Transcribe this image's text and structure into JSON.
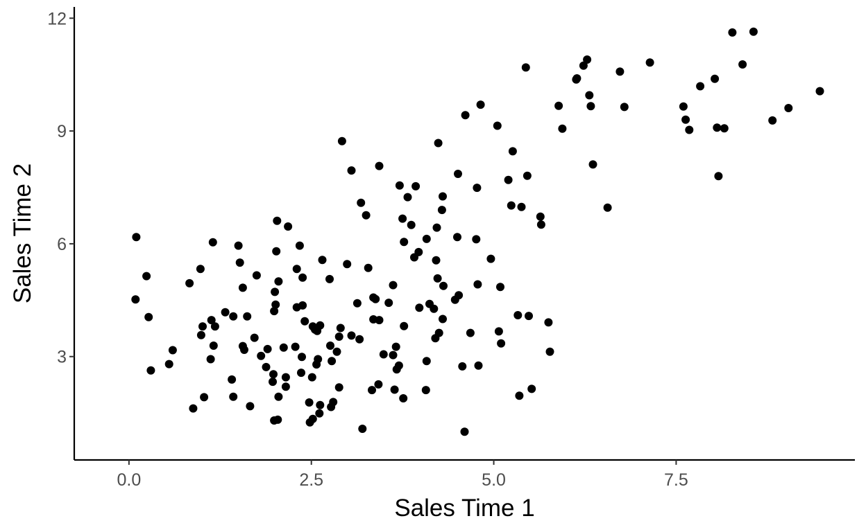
{
  "chart_data": {
    "type": "scatter",
    "xlabel": "Sales Time 1",
    "ylabel": "Sales Time 2",
    "xlim": [
      -0.75,
      9.95
    ],
    "ylim": [
      0.25,
      12.3
    ],
    "xticks": [
      0.0,
      2.5,
      5.0,
      7.5
    ],
    "xtick_labels": [
      "0.0",
      "2.5",
      "5.0",
      "7.5"
    ],
    "yticks": [
      3,
      6,
      9,
      12
    ],
    "ytick_labels": [
      "3",
      "6",
      "9",
      "12"
    ],
    "grid": false,
    "legend": "none",
    "point_color": "#000000",
    "points": [
      [
        0.1,
        6.18
      ],
      [
        0.09,
        4.52
      ],
      [
        0.24,
        5.14
      ],
      [
        0.27,
        4.05
      ],
      [
        0.3,
        2.63
      ],
      [
        0.55,
        2.8
      ],
      [
        0.6,
        3.17
      ],
      [
        0.83,
        4.95
      ],
      [
        0.88,
        1.62
      ],
      [
        0.98,
        5.33
      ],
      [
        0.99,
        3.57
      ],
      [
        1.01,
        3.8
      ],
      [
        1.03,
        1.92
      ],
      [
        1.12,
        2.93
      ],
      [
        1.13,
        3.97
      ],
      [
        1.15,
        6.04
      ],
      [
        1.16,
        3.29
      ],
      [
        1.18,
        3.8
      ],
      [
        1.32,
        4.18
      ],
      [
        1.41,
        2.39
      ],
      [
        1.43,
        1.93
      ],
      [
        1.43,
        4.07
      ],
      [
        1.5,
        5.95
      ],
      [
        1.52,
        5.5
      ],
      [
        1.56,
        4.83
      ],
      [
        1.56,
        3.28
      ],
      [
        1.58,
        3.18
      ],
      [
        1.62,
        4.07
      ],
      [
        1.66,
        1.68
      ],
      [
        1.72,
        3.5
      ],
      [
        1.75,
        5.16
      ],
      [
        1.81,
        3.02
      ],
      [
        1.88,
        2.72
      ],
      [
        1.9,
        3.2
      ],
      [
        1.97,
        2.33
      ],
      [
        1.98,
        2.53
      ],
      [
        1.99,
        1.3
      ],
      [
        1.99,
        4.21
      ],
      [
        2.0,
        4.72
      ],
      [
        2.01,
        4.38
      ],
      [
        2.02,
        5.8
      ],
      [
        2.03,
        6.61
      ],
      [
        2.04,
        1.32
      ],
      [
        2.05,
        5.0
      ],
      [
        2.05,
        1.93
      ],
      [
        2.12,
        3.24
      ],
      [
        2.15,
        2.45
      ],
      [
        2.15,
        2.2
      ],
      [
        2.18,
        6.46
      ],
      [
        2.28,
        3.26
      ],
      [
        2.3,
        4.31
      ],
      [
        2.3,
        5.33
      ],
      [
        2.34,
        5.95
      ],
      [
        2.36,
        2.57
      ],
      [
        2.37,
        2.99
      ],
      [
        2.38,
        4.36
      ],
      [
        2.38,
        5.1
      ],
      [
        2.41,
        3.94
      ],
      [
        2.47,
        1.78
      ],
      [
        2.48,
        1.25
      ],
      [
        2.51,
        2.45
      ],
      [
        2.52,
        3.8
      ],
      [
        2.52,
        1.34
      ],
      [
        2.55,
        3.72
      ],
      [
        2.57,
        2.79
      ],
      [
        2.58,
        3.68
      ],
      [
        2.59,
        2.93
      ],
      [
        2.61,
        1.49
      ],
      [
        2.62,
        1.71
      ],
      [
        2.62,
        3.83
      ],
      [
        2.65,
        5.57
      ],
      [
        2.75,
        5.06
      ],
      [
        2.76,
        3.29
      ],
      [
        2.77,
        1.66
      ],
      [
        2.78,
        2.88
      ],
      [
        2.8,
        1.79
      ],
      [
        2.85,
        3.13
      ],
      [
        2.88,
        2.18
      ],
      [
        2.88,
        3.53
      ],
      [
        2.9,
        3.76
      ],
      [
        2.92,
        8.73
      ],
      [
        2.99,
        5.46
      ],
      [
        3.05,
        7.95
      ],
      [
        3.05,
        3.56
      ],
      [
        3.13,
        4.42
      ],
      [
        3.16,
        3.46
      ],
      [
        3.18,
        7.09
      ],
      [
        3.2,
        1.08
      ],
      [
        3.25,
        6.76
      ],
      [
        3.28,
        5.36
      ],
      [
        3.33,
        2.11
      ],
      [
        3.35,
        4.57
      ],
      [
        3.35,
        3.99
      ],
      [
        3.38,
        4.53
      ],
      [
        3.42,
        2.26
      ],
      [
        3.43,
        8.07
      ],
      [
        3.43,
        3.97
      ],
      [
        3.49,
        3.06
      ],
      [
        3.56,
        4.43
      ],
      [
        3.62,
        4.9
      ],
      [
        3.62,
        3.04
      ],
      [
        3.64,
        2.12
      ],
      [
        3.66,
        3.26
      ],
      [
        3.67,
        2.66
      ],
      [
        3.7,
        2.76
      ],
      [
        3.71,
        7.55
      ],
      [
        3.75,
        6.67
      ],
      [
        3.76,
        1.89
      ],
      [
        3.77,
        3.81
      ],
      [
        3.77,
        6.05
      ],
      [
        3.82,
        7.24
      ],
      [
        3.87,
        6.5
      ],
      [
        3.91,
        5.64
      ],
      [
        3.93,
        7.53
      ],
      [
        3.97,
        5.78
      ],
      [
        3.98,
        4.3
      ],
      [
        4.07,
        2.11
      ],
      [
        4.08,
        6.13
      ],
      [
        4.08,
        2.88
      ],
      [
        4.12,
        4.4
      ],
      [
        4.18,
        4.27
      ],
      [
        4.2,
        3.49
      ],
      [
        4.21,
        5.56
      ],
      [
        4.22,
        6.43
      ],
      [
        4.23,
        5.08
      ],
      [
        4.24,
        8.68
      ],
      [
        4.25,
        3.63
      ],
      [
        4.29,
        6.9
      ],
      [
        4.3,
        7.26
      ],
      [
        4.3,
        4.0
      ],
      [
        4.31,
        4.88
      ],
      [
        4.47,
        4.51
      ],
      [
        4.5,
        6.18
      ],
      [
        4.51,
        7.86
      ],
      [
        4.52,
        4.63
      ],
      [
        4.57,
        2.74
      ],
      [
        4.6,
        1.0
      ],
      [
        4.61,
        9.42
      ],
      [
        4.68,
        3.63
      ],
      [
        4.76,
        6.12
      ],
      [
        4.77,
        7.49
      ],
      [
        4.78,
        4.92
      ],
      [
        4.79,
        2.76
      ],
      [
        4.82,
        9.7
      ],
      [
        4.96,
        5.6
      ],
      [
        5.05,
        9.14
      ],
      [
        5.07,
        3.67
      ],
      [
        5.09,
        4.85
      ],
      [
        5.1,
        3.35
      ],
      [
        5.2,
        7.7
      ],
      [
        5.24,
        7.02
      ],
      [
        5.26,
        8.46
      ],
      [
        5.33,
        4.1
      ],
      [
        5.35,
        1.96
      ],
      [
        5.38,
        6.98
      ],
      [
        5.44,
        10.69
      ],
      [
        5.46,
        7.81
      ],
      [
        5.48,
        4.08
      ],
      [
        5.52,
        2.14
      ],
      [
        5.64,
        6.72
      ],
      [
        5.65,
        6.51
      ],
      [
        5.75,
        3.91
      ],
      [
        5.77,
        3.13
      ],
      [
        5.89,
        9.67
      ],
      [
        5.94,
        9.06
      ],
      [
        6.13,
        10.37
      ],
      [
        6.14,
        10.4
      ],
      [
        6.23,
        10.74
      ],
      [
        6.28,
        10.9
      ],
      [
        6.31,
        9.95
      ],
      [
        6.33,
        9.66
      ],
      [
        6.36,
        8.11
      ],
      [
        6.56,
        6.96
      ],
      [
        6.73,
        10.58
      ],
      [
        6.79,
        9.64
      ],
      [
        7.14,
        10.82
      ],
      [
        7.6,
        9.65
      ],
      [
        7.63,
        9.3
      ],
      [
        7.68,
        9.03
      ],
      [
        7.83,
        10.19
      ],
      [
        8.03,
        10.39
      ],
      [
        8.06,
        9.09
      ],
      [
        8.08,
        7.8
      ],
      [
        8.16,
        9.07
      ],
      [
        8.27,
        11.62
      ],
      [
        8.41,
        10.77
      ],
      [
        8.56,
        11.64
      ],
      [
        8.82,
        9.28
      ],
      [
        9.04,
        9.61
      ],
      [
        9.47,
        10.06
      ]
    ]
  }
}
